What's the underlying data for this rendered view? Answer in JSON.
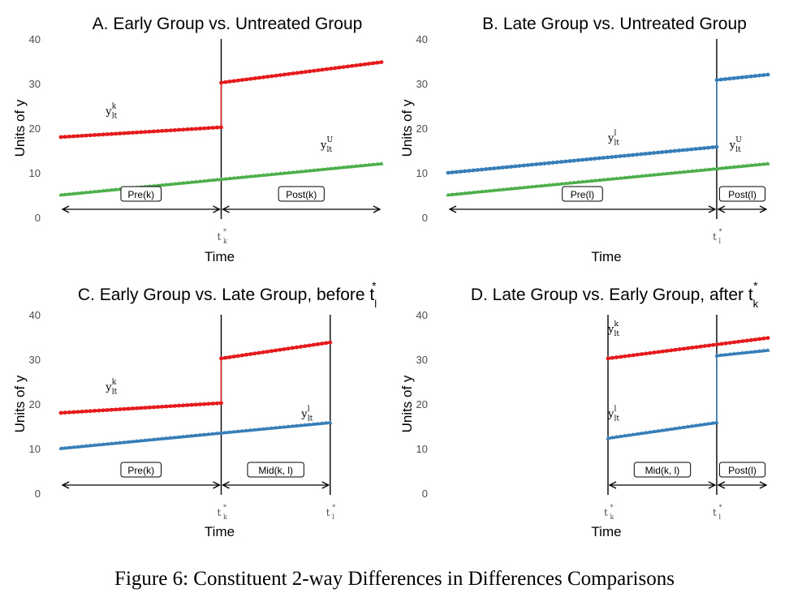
{
  "caption": "Figure 6: Constituent 2-way Differences in Differences Comparisons",
  "colors": {
    "early": "#e41a1c",
    "late": "#377eb8",
    "untreated": "#4daf4a",
    "axis": "#000000",
    "tick": "#4d4d4d"
  },
  "chart_data": [
    {
      "type": "line",
      "title": "A. Early Group vs. Untreated Group",
      "xlabel": "Time",
      "ylabel": "Units of y",
      "ylim": [
        0,
        40
      ],
      "yticks": [
        0,
        10,
        20,
        30,
        40
      ],
      "x_range": [
        0,
        100
      ],
      "grid": false,
      "event_lines": [
        {
          "x": 50,
          "label": "t",
          "sup": "*",
          "sub": "k"
        }
      ],
      "series": [
        {
          "key": "early",
          "label": "y",
          "label_sup": "k",
          "label_sub": "lt",
          "marker": "circle",
          "segments": [
            {
              "x": [
                0,
                50
              ],
              "y": [
                18,
                20.2
              ]
            },
            {
              "x": [
                50,
                100
              ],
              "y": [
                30.2,
                34.8
              ]
            }
          ],
          "label_x": 14,
          "label_y": 23
        },
        {
          "key": "untreated",
          "label": "y",
          "label_sup": "U",
          "label_sub": "lt",
          "marker": "triangle",
          "segments": [
            {
              "x": [
                0,
                100
              ],
              "y": [
                5,
                12
              ]
            }
          ],
          "label_x": 81,
          "label_y": 15.5
        }
      ],
      "periods": [
        {
          "label": "Pre(k)",
          "from": 0,
          "to": 50
        },
        {
          "label": "Post(k)",
          "from": 50,
          "to": 100
        }
      ]
    },
    {
      "type": "line",
      "title": "B. Late Group vs. Untreated Group",
      "xlabel": "Time",
      "ylabel": "Units of y",
      "ylim": [
        0,
        40
      ],
      "yticks": [
        0,
        10,
        20,
        30,
        40
      ],
      "x_range": [
        0,
        100
      ],
      "grid": false,
      "event_lines": [
        {
          "x": 84,
          "label": "t",
          "sup": "*",
          "sub": "l"
        }
      ],
      "series": [
        {
          "key": "late",
          "label": "y",
          "label_sup": "l",
          "label_sub": "lt",
          "marker": "circle",
          "segments": [
            {
              "x": [
                0,
                84
              ],
              "y": [
                10,
                15.8
              ]
            },
            {
              "x": [
                84,
                100
              ],
              "y": [
                30.8,
                32
              ]
            }
          ],
          "label_x": 50,
          "label_y": 17
        },
        {
          "key": "untreated",
          "label": "y",
          "label_sup": "U",
          "label_sub": "lt",
          "marker": "triangle",
          "segments": [
            {
              "x": [
                0,
                100
              ],
              "y": [
                5,
                12
              ]
            }
          ],
          "label_x": 88,
          "label_y": 15.5
        }
      ],
      "periods": [
        {
          "label": "Pre(l)",
          "from": 0,
          "to": 84
        },
        {
          "label": "Post(l)",
          "from": 84,
          "to": 100
        }
      ]
    },
    {
      "type": "line",
      "title": "C. Early Group vs. Late Group, before t",
      "title_sup": "*",
      "title_sub": "l",
      "xlabel": "Time",
      "ylabel": "Units of y",
      "ylim": [
        0,
        40
      ],
      "yticks": [
        0,
        10,
        20,
        30,
        40
      ],
      "x_range": [
        0,
        100
      ],
      "grid": false,
      "event_lines": [
        {
          "x": 50,
          "label": "t",
          "sup": "*",
          "sub": "k"
        },
        {
          "x": 84,
          "label": "t",
          "sup": "*",
          "sub": "l"
        }
      ],
      "series": [
        {
          "key": "early",
          "label": "y",
          "label_sup": "k",
          "label_sub": "lt",
          "marker": "circle",
          "segments": [
            {
              "x": [
                0,
                50
              ],
              "y": [
                18,
                20.2
              ]
            },
            {
              "x": [
                50,
                84
              ],
              "y": [
                30.2,
                33.8
              ]
            }
          ],
          "label_x": 14,
          "label_y": 23
        },
        {
          "key": "late",
          "label": "y",
          "label_sup": "l",
          "label_sub": "lt",
          "marker": "triangle",
          "segments": [
            {
              "x": [
                0,
                84
              ],
              "y": [
                10,
                15.8
              ]
            }
          ],
          "label_x": 75,
          "label_y": 17
        }
      ],
      "periods": [
        {
          "label": "Pre(k)",
          "from": 0,
          "to": 50
        },
        {
          "label": "Mid(k, l)",
          "from": 50,
          "to": 84
        }
      ]
    },
    {
      "type": "line",
      "title": "D. Late Group vs. Early Group, after t",
      "title_sup": "*",
      "title_sub": "k",
      "xlabel": "Time",
      "ylabel": "Units of y",
      "ylim": [
        0,
        40
      ],
      "yticks": [
        0,
        10,
        20,
        30,
        40
      ],
      "x_range": [
        0,
        100
      ],
      "grid": false,
      "event_lines": [
        {
          "x": 50,
          "label": "t",
          "sup": "*",
          "sub": "k"
        },
        {
          "x": 84,
          "label": "t",
          "sup": "*",
          "sub": "l"
        }
      ],
      "series": [
        {
          "key": "early",
          "label": "y",
          "label_sup": "k",
          "label_sub": "lt",
          "marker": "circle",
          "segments": [
            {
              "x": [
                50,
                100
              ],
              "y": [
                30.2,
                34.8
              ]
            }
          ],
          "label_x": 50,
          "label_y": 36
        },
        {
          "key": "late",
          "label": "y",
          "label_sup": "l",
          "label_sub": "lt",
          "marker": "triangle",
          "segments": [
            {
              "x": [
                50,
                84
              ],
              "y": [
                12.3,
                15.8
              ]
            },
            {
              "x": [
                84,
                100
              ],
              "y": [
                30.8,
                32
              ]
            }
          ],
          "label_x": 50,
          "label_y": 17
        }
      ],
      "periods": [
        {
          "label": "Mid(k, l)",
          "from": 50,
          "to": 84
        },
        {
          "label": "Post(l)",
          "from": 84,
          "to": 100
        }
      ]
    }
  ]
}
